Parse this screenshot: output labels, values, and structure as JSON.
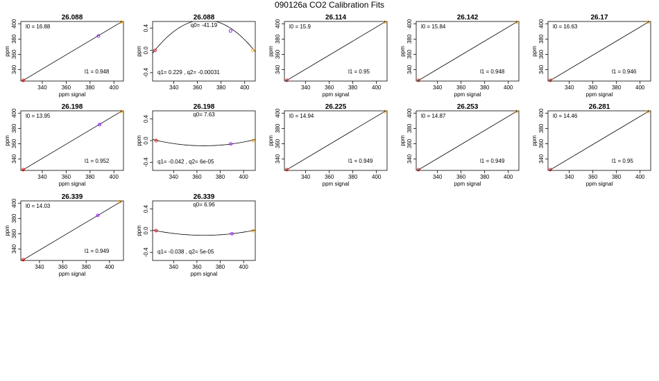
{
  "title": "090126a   CO2 Calibration Fits",
  "colors": {
    "axis": "#000000",
    "curve": "#000000",
    "point_low": "#ff0000",
    "point_mid": "#8800ff",
    "point_high": "#ffa500"
  },
  "chart_data": [
    {
      "type": "line",
      "title": "26.088",
      "xlabel": "ppm signal",
      "ylabel": "ppm",
      "xlim": [
        322,
        408
      ],
      "ylim": [
        325,
        403
      ],
      "xticks": [
        340,
        360,
        380,
        400
      ],
      "yticks": [
        340,
        360,
        380,
        400
      ],
      "points": [
        {
          "x": 324,
          "y": 326
        },
        {
          "x": 387,
          "y": 384
        },
        {
          "x": 406,
          "y": 402
        }
      ],
      "fit": {
        "x": [
          322,
          408
        ],
        "y": [
          324,
          404
        ]
      },
      "annotations": [
        {
          "text": "l0 =  16.88",
          "pos": "top-left"
        },
        {
          "text": "l1 =  0.948",
          "pos": "bottom-right"
        }
      ]
    },
    {
      "type": "line",
      "title": "26.088",
      "xlabel": "",
      "ylabel": "ppm",
      "xlim": [
        322,
        409
      ],
      "ylim": [
        -0.55,
        0.52
      ],
      "xticks": [
        340,
        360,
        380,
        400
      ],
      "yticks": [
        -0.4,
        0.0,
        0.4
      ],
      "points": [
        {
          "x": 324,
          "y": 0.0
        },
        {
          "x": 388,
          "y": 0.35
        },
        {
          "x": 407,
          "y": 0.0
        }
      ],
      "fit": {
        "type": "quadratic",
        "a": -0.00031,
        "xv": 366,
        "yv": 0.55
      },
      "annotations": [
        {
          "text": "q0= -41.19",
          "pos": "top-center"
        },
        {
          "text": "q1= 0.229 , q2= -0.00031",
          "pos": "bottom-left"
        }
      ]
    },
    {
      "type": "line",
      "title": "26.114",
      "xlabel": "ppm signal",
      "ylabel": "ppm",
      "xlim": [
        322,
        409
      ],
      "ylim": [
        325,
        403
      ],
      "xticks": [
        340,
        360,
        380,
        400
      ],
      "yticks": [
        340,
        360,
        380,
        400
      ],
      "points": [
        {
          "x": 324,
          "y": 326
        },
        {
          "x": 407,
          "y": 402
        }
      ],
      "fit": {
        "x": [
          322,
          409
        ],
        "y": [
          324,
          404
        ]
      },
      "annotations": [
        {
          "text": "l0 =  15.9",
          "pos": "top-left"
        },
        {
          "text": "l1 =  0.95",
          "pos": "bottom-right"
        }
      ]
    },
    {
      "type": "line",
      "title": "26.142",
      "xlabel": "ppm signal",
      "ylabel": "ppm",
      "xlim": [
        322,
        409
      ],
      "ylim": [
        325,
        403
      ],
      "xticks": [
        340,
        360,
        380,
        400
      ],
      "yticks": [
        340,
        360,
        380,
        400
      ],
      "points": [
        {
          "x": 324,
          "y": 326
        },
        {
          "x": 407,
          "y": 402
        }
      ],
      "fit": {
        "x": [
          322,
          409
        ],
        "y": [
          324,
          404
        ]
      },
      "annotations": [
        {
          "text": "l0 =  15.84",
          "pos": "top-left"
        },
        {
          "text": "l1 =  0.948",
          "pos": "bottom-right"
        }
      ]
    },
    {
      "type": "line",
      "title": "26.17",
      "xlabel": "ppm signal",
      "ylabel": "ppm",
      "xlim": [
        322,
        409
      ],
      "ylim": [
        325,
        403
      ],
      "xticks": [
        340,
        360,
        380,
        400
      ],
      "yticks": [
        340,
        360,
        380,
        400
      ],
      "points": [
        {
          "x": 324,
          "y": 326
        },
        {
          "x": 407,
          "y": 402
        }
      ],
      "fit": {
        "x": [
          322,
          409
        ],
        "y": [
          324,
          404
        ]
      },
      "annotations": [
        {
          "text": "l0 =  16.63",
          "pos": "top-left"
        },
        {
          "text": "l1 =  0.946",
          "pos": "bottom-right"
        }
      ]
    },
    {
      "type": "line",
      "title": "26.198",
      "xlabel": "ppm signal",
      "ylabel": "ppm",
      "xlim": [
        322,
        408
      ],
      "ylim": [
        325,
        403
      ],
      "xticks": [
        340,
        360,
        380,
        400
      ],
      "yticks": [
        340,
        360,
        380,
        400
      ],
      "points": [
        {
          "x": 324,
          "y": 326
        },
        {
          "x": 388,
          "y": 385
        },
        {
          "x": 406,
          "y": 402
        }
      ],
      "fit": {
        "x": [
          322,
          408
        ],
        "y": [
          324,
          404
        ]
      },
      "annotations": [
        {
          "text": "l0 =  13.95",
          "pos": "top-left"
        },
        {
          "text": "l1 =  0.952",
          "pos": "bottom-right"
        }
      ]
    },
    {
      "type": "line",
      "title": "26.198",
      "xlabel": "",
      "ylabel": "ppm",
      "xlim": [
        322,
        410
      ],
      "ylim": [
        -0.55,
        0.55
      ],
      "xticks": [
        340,
        360,
        380,
        400
      ],
      "yticks": [
        -0.4,
        0.0,
        0.4
      ],
      "points": [
        {
          "x": 325,
          "y": 0.0
        },
        {
          "x": 389,
          "y": -0.06
        },
        {
          "x": 408,
          "y": 0.0
        }
      ],
      "fit": {
        "type": "quadratic",
        "a": 6e-05,
        "xv": 366,
        "yv": -0.095
      },
      "annotations": [
        {
          "text": "q0= 7.63",
          "pos": "top-center"
        },
        {
          "text": "q1= -0.042 , q2= 6e-05",
          "pos": "bottom-left"
        }
      ]
    },
    {
      "type": "line",
      "title": "26.225",
      "xlabel": "ppm signal",
      "ylabel": "ppm",
      "xlim": [
        322,
        409
      ],
      "ylim": [
        325,
        403
      ],
      "xticks": [
        340,
        360,
        380,
        400
      ],
      "yticks": [
        340,
        360,
        380,
        400
      ],
      "points": [
        {
          "x": 324,
          "y": 326
        },
        {
          "x": 407,
          "y": 402
        }
      ],
      "fit": {
        "x": [
          322,
          409
        ],
        "y": [
          324,
          404
        ]
      },
      "annotations": [
        {
          "text": "l0 =  14.94",
          "pos": "top-left"
        },
        {
          "text": "l1 =  0.949",
          "pos": "bottom-right"
        }
      ]
    },
    {
      "type": "line",
      "title": "26.253",
      "xlabel": "ppm signal",
      "ylabel": "ppm",
      "xlim": [
        322,
        409
      ],
      "ylim": [
        325,
        403
      ],
      "xticks": [
        340,
        360,
        380,
        400
      ],
      "yticks": [
        340,
        360,
        380,
        400
      ],
      "points": [
        {
          "x": 324,
          "y": 326
        },
        {
          "x": 407,
          "y": 402
        }
      ],
      "fit": {
        "x": [
          322,
          409
        ],
        "y": [
          324,
          404
        ]
      },
      "annotations": [
        {
          "text": "l0 =  14.87",
          "pos": "top-left"
        },
        {
          "text": "l1 =  0.949",
          "pos": "bottom-right"
        }
      ]
    },
    {
      "type": "line",
      "title": "26.281",
      "xlabel": "ppm signal",
      "ylabel": "ppm",
      "xlim": [
        322,
        409
      ],
      "ylim": [
        325,
        403
      ],
      "xticks": [
        340,
        360,
        380,
        400
      ],
      "yticks": [
        340,
        360,
        380,
        400
      ],
      "points": [
        {
          "x": 324,
          "y": 326
        },
        {
          "x": 407,
          "y": 402
        }
      ],
      "fit": {
        "x": [
          322,
          409
        ],
        "y": [
          324,
          404
        ]
      },
      "annotations": [
        {
          "text": "l0 =  14.46",
          "pos": "top-left"
        },
        {
          "text": "l1 =  0.95",
          "pos": "bottom-right"
        }
      ]
    },
    {
      "type": "line",
      "title": "26.339",
      "xlabel": "ppm signal",
      "ylabel": "ppm",
      "xlim": [
        324,
        412
      ],
      "ylim": [
        325,
        403
      ],
      "xticks": [
        340,
        360,
        380,
        400
      ],
      "yticks": [
        340,
        360,
        380,
        400
      ],
      "points": [
        {
          "x": 326,
          "y": 326
        },
        {
          "x": 390,
          "y": 384
        },
        {
          "x": 409,
          "y": 402
        }
      ],
      "fit": {
        "x": [
          324,
          412
        ],
        "y": [
          324,
          404
        ]
      },
      "annotations": [
        {
          "text": "l0 =  14.03",
          "pos": "top-left"
        },
        {
          "text": "l1 =  0.949",
          "pos": "bottom-right"
        }
      ]
    },
    {
      "type": "line",
      "title": "26.339",
      "xlabel": "ppm signal",
      "ylabel": "ppm",
      "xlim": [
        322,
        410
      ],
      "ylim": [
        -0.55,
        0.55
      ],
      "xticks": [
        340,
        360,
        380,
        400
      ],
      "yticks": [
        -0.4,
        0.0,
        0.4
      ],
      "points": [
        {
          "x": 325,
          "y": 0.0
        },
        {
          "x": 390,
          "y": -0.055
        },
        {
          "x": 408,
          "y": 0.0
        }
      ],
      "fit": {
        "type": "quadratic",
        "a": 5e-05,
        "xv": 366,
        "yv": -0.085
      },
      "annotations": [
        {
          "text": "q0= 6.96",
          "pos": "top-center"
        },
        {
          "text": "q1= -0.038 , q2= 5e-05",
          "pos": "bottom-left"
        }
      ]
    }
  ]
}
